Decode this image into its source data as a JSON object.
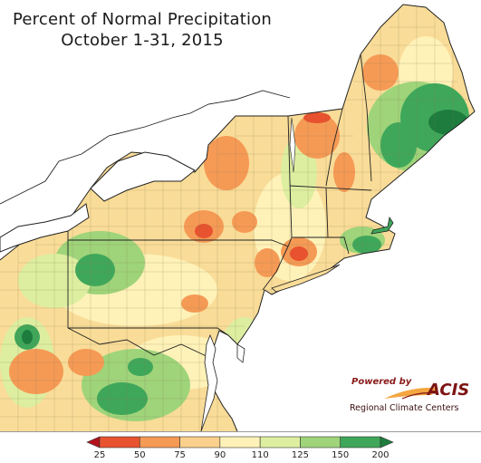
{
  "title": {
    "line1": "Percent of Normal Precipitation",
    "line2": "October 1-31, 2015"
  },
  "logo": {
    "powered_by": "Powered by",
    "name": "ACIS",
    "org": "Regional Climate Centers"
  },
  "legend": {
    "ticks": [
      "25",
      "50",
      "75",
      "90",
      "110",
      "125",
      "150",
      "200"
    ],
    "colors": [
      "#c8141e",
      "#e8522e",
      "#f59a55",
      "#fbd08c",
      "#fff2b8",
      "#ddeea0",
      "#9fd47a",
      "#3fa75a",
      "#1e7d3e"
    ],
    "arrow_left_color": "#b3111c",
    "arrow_right_color": "#1e7d3e"
  },
  "map": {
    "water_color": "#ffffff",
    "outside_land_color": "#ffffff",
    "base_fill": "#f9dc98",
    "state_line_color": "#222222",
    "county_line_color": "#8a7a55"
  }
}
